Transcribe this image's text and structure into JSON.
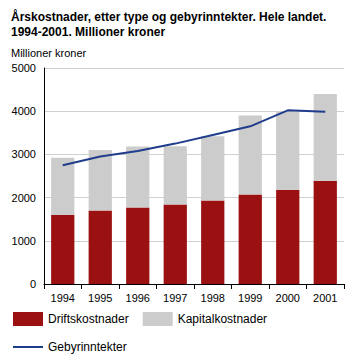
{
  "chart_data": {
    "type": "bar",
    "title": "Årskostnader, etter type og gebyrinntekter. Hele landet. 1994-2001. Millioner kroner",
    "ylabel": "Millioner kroner",
    "categories": [
      "1994",
      "1995",
      "1996",
      "1997",
      "1998",
      "1999",
      "2000",
      "2001"
    ],
    "series": [
      {
        "name": "Driftskostnader",
        "type": "bar",
        "color": "#9b1010",
        "values": [
          1600,
          1700,
          1770,
          1840,
          1930,
          2070,
          2180,
          2390
        ]
      },
      {
        "name": "Kapitalkostnader",
        "type": "bar",
        "color": "#cccccc",
        "values": [
          1320,
          1400,
          1410,
          1350,
          1490,
          1830,
          1810,
          2010
        ]
      },
      {
        "name": "Gebyrinntekter",
        "type": "line",
        "color": "#1f3d8c",
        "marker": "none",
        "values": [
          2750,
          2950,
          3080,
          3250,
          3450,
          3650,
          4020,
          3990
        ]
      }
    ],
    "stacked": true,
    "ylim": [
      0,
      5000
    ],
    "yticks": [
      0,
      1000,
      2000,
      3000,
      4000,
      5000
    ],
    "grid": true,
    "legend": "bottom"
  }
}
